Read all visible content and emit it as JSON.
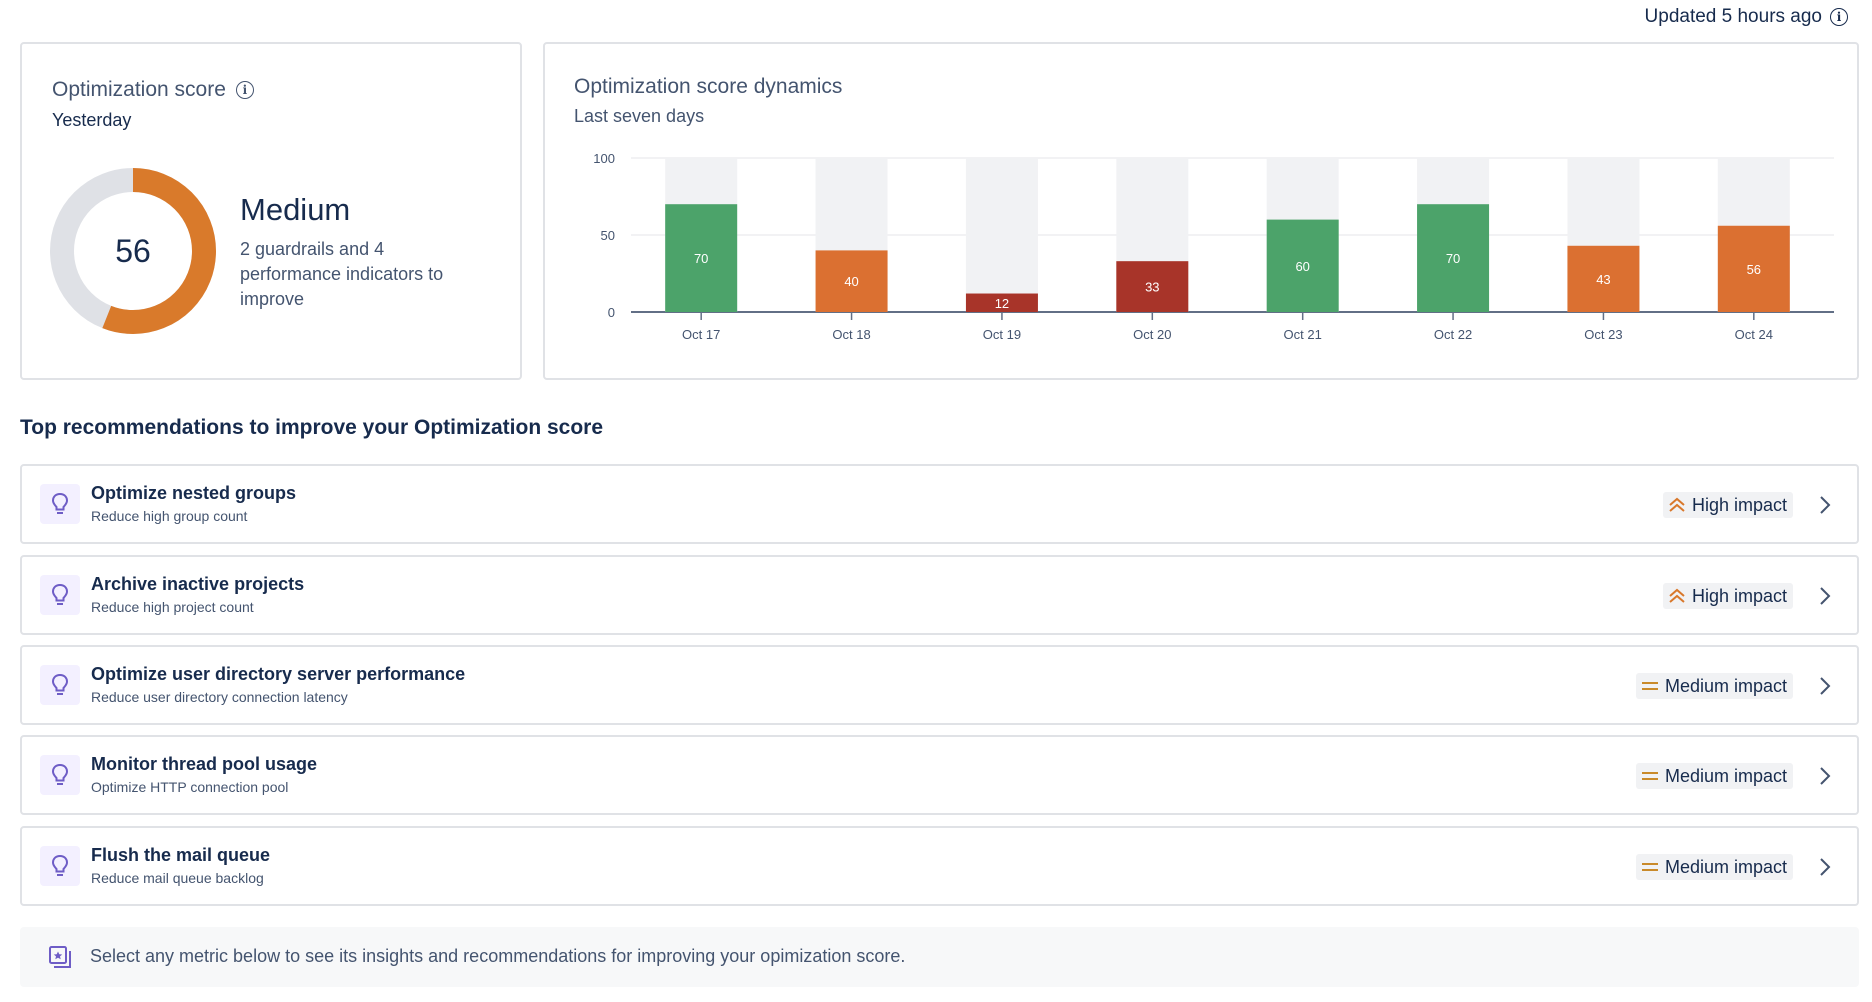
{
  "header": {
    "updated_text": "Updated 5 hours ago",
    "info_icon": "info-icon"
  },
  "score_card": {
    "title": "Optimization score",
    "subtitle": "Yesterday",
    "score": "56",
    "score_fraction": 0.56,
    "level": "Medium",
    "description": "2 guardrails and 4 performance indicators to improve",
    "colors": {
      "filled": "#d97a2b",
      "track": "#dfe1e6"
    }
  },
  "dynamics_card": {
    "title": "Optimization score dynamics",
    "subtitle": "Last seven days"
  },
  "chart_data": {
    "type": "bar",
    "categories": [
      "Oct 17",
      "Oct 18",
      "Oct 19",
      "Oct 20",
      "Oct 21",
      "Oct 22",
      "Oct 23",
      "Oct 24"
    ],
    "values": [
      70,
      40,
      12,
      33,
      60,
      70,
      43,
      56
    ],
    "colors": [
      "#4ca36a",
      "#db7031",
      "#a83429",
      "#a83429",
      "#4ca36a",
      "#4ca36a",
      "#db7031",
      "#db7031"
    ],
    "background_bar_color": "#f1f2f4",
    "yticks": [
      "100",
      "50",
      "0"
    ],
    "ylim": [
      0,
      100
    ],
    "grid": true,
    "data_labels": true
  },
  "recommendations_section": {
    "title": "Top recommendations to improve your Optimization score",
    "items": [
      {
        "title": "Optimize nested groups",
        "description": "Reduce high group count",
        "impact": "High impact",
        "impact_icon": "double-chevron-up-icon"
      },
      {
        "title": "Archive inactive projects",
        "description": "Reduce high project count",
        "impact": "High impact",
        "impact_icon": "double-chevron-up-icon"
      },
      {
        "title": "Optimize user directory server performance",
        "description": "Reduce user directory connection latency",
        "impact": "Medium impact",
        "impact_icon": "equals-icon"
      },
      {
        "title": "Monitor thread pool usage",
        "description": "Optimize HTTP connection pool",
        "impact": "Medium impact",
        "impact_icon": "equals-icon"
      },
      {
        "title": "Flush the mail queue",
        "description": "Reduce mail queue backlog",
        "impact": "Medium impact",
        "impact_icon": "equals-icon"
      }
    ]
  },
  "banner": {
    "text": "Select any metric below to see its insights and recommendations for improving your opimization score.",
    "icon": "select-metric-icon"
  }
}
